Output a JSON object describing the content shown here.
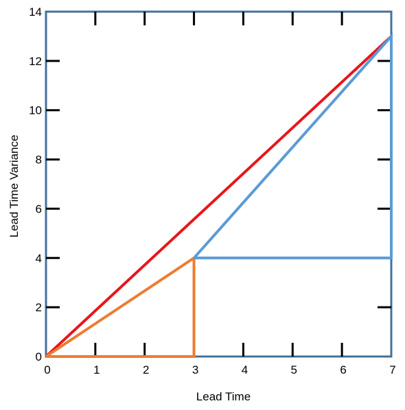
{
  "chart_data": {
    "type": "line",
    "title": "",
    "xlabel": "Lead Time",
    "ylabel": "Lead Time Variance",
    "xlim": [
      0,
      7
    ],
    "ylim": [
      0,
      14
    ],
    "x_ticks": [
      0,
      1,
      2,
      3,
      4,
      5,
      6,
      7
    ],
    "y_ticks": [
      0,
      2,
      4,
      6,
      8,
      10,
      12,
      14
    ],
    "grid": false,
    "legend": "none",
    "series": [
      {
        "color": "#e8161b",
        "points": [
          [
            0,
            0
          ],
          [
            7,
            13
          ]
        ]
      },
      {
        "color": "#ed7d31",
        "points": [
          [
            0,
            0
          ],
          [
            3,
            4
          ],
          [
            3,
            0
          ],
          [
            0,
            0
          ]
        ]
      },
      {
        "color": "#5b9bd5",
        "points": [
          [
            3,
            4
          ],
          [
            7,
            13
          ],
          [
            7,
            4
          ],
          [
            3,
            4
          ]
        ]
      }
    ],
    "frame_color": "#41719c"
  }
}
